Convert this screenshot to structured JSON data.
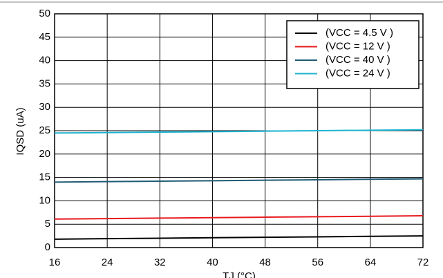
{
  "chart_data": {
    "type": "line",
    "x_label": "TJ (°C)",
    "y_label": "IQSD (uA)",
    "x": [
      16,
      24,
      32,
      40,
      48,
      56,
      64,
      72
    ],
    "series": [
      {
        "name": "(VCC = 4.5 V )",
        "color": "#000000",
        "values": [
          1.8,
          1.9,
          2.0,
          2.1,
          2.2,
          2.3,
          2.4,
          2.5
        ]
      },
      {
        "name": "(VCC = 12 V )",
        "color": "#e8191e",
        "values": [
          6.1,
          6.2,
          6.3,
          6.4,
          6.5,
          6.6,
          6.7,
          6.8
        ]
      },
      {
        "name": "(VCC = 40 V )",
        "color": "#1f5b73",
        "values": [
          14.0,
          14.1,
          14.2,
          14.3,
          14.4,
          14.5,
          14.6,
          14.7
        ]
      },
      {
        "name": "(VCC = 24 V )",
        "color": "#1bb3d1",
        "values": [
          24.5,
          24.6,
          24.7,
          24.8,
          24.9,
          25.0,
          25.1,
          25.2
        ]
      }
    ],
    "xlim": [
      16,
      72
    ],
    "xticks": [
      16,
      24,
      32,
      40,
      48,
      56,
      64,
      72
    ],
    "ylim": [
      0,
      50
    ],
    "yticks": [
      0,
      5,
      10,
      15,
      20,
      25,
      30,
      35,
      40,
      45,
      50
    ],
    "grid": true,
    "legend": "upper right"
  }
}
